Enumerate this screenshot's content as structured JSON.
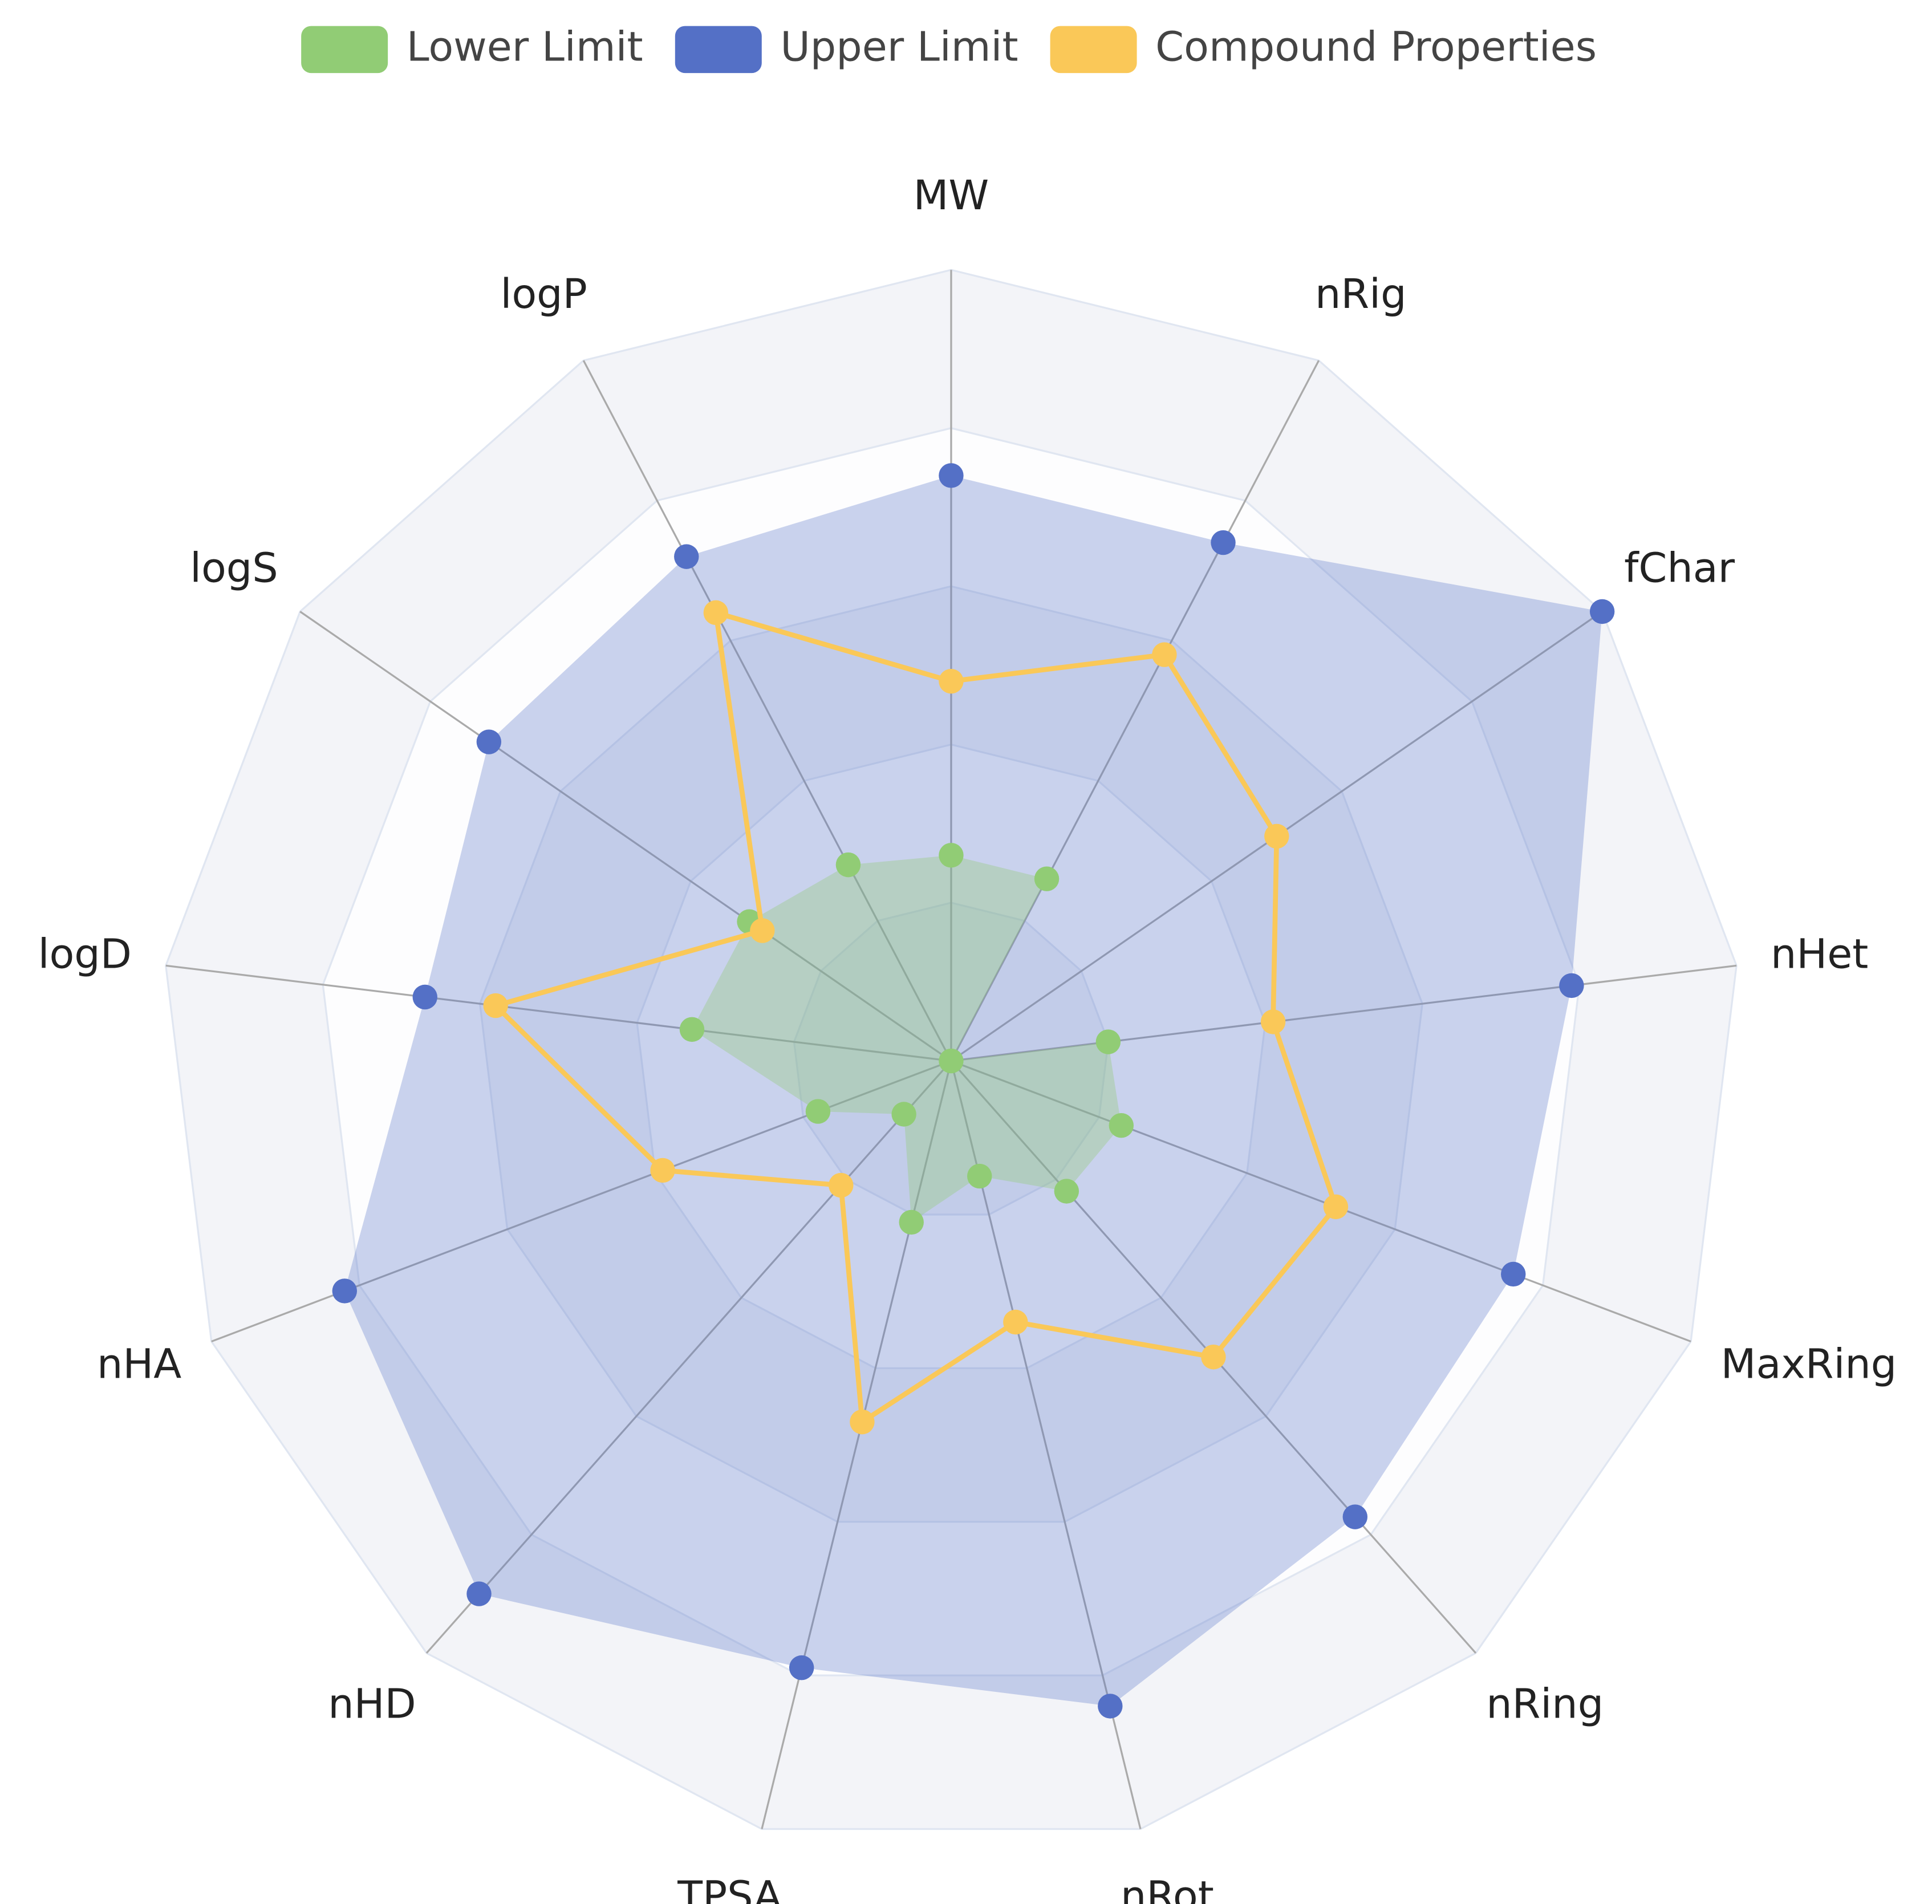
{
  "chart_data": {
    "type": "radar",
    "categories": [
      "MW",
      "nRig",
      "fChar",
      "nHet",
      "MaxRing",
      "nRing",
      "nRot",
      "TPSA",
      "nHD",
      "nHA",
      "logD",
      "logS",
      "logP"
    ],
    "ylim": [
      0,
      1
    ],
    "yticks": [
      0.2,
      0.4,
      0.6,
      0.8,
      1
    ],
    "grid": true,
    "legend": "top",
    "series": [
      {
        "name": "Lower Limit",
        "color": "#91cc75",
        "values": [
          0.26,
          0.26,
          0,
          0.2,
          0.23,
          0.22,
          0.15,
          0.21,
          0.09,
          0.18,
          0.33,
          0.31,
          0.28
        ]
      },
      {
        "name": "Upper Limit",
        "color": "#5470c6",
        "values": [
          0.74,
          0.74,
          1.0,
          0.79,
          0.76,
          0.77,
          0.84,
          0.79,
          0.9,
          0.82,
          0.67,
          0.71,
          0.72
        ]
      },
      {
        "name": "Compound Properties",
        "color": "#fac858",
        "values": [
          0.48,
          0.58,
          0.5,
          0.41,
          0.52,
          0.5,
          0.34,
          0.47,
          0.21,
          0.39,
          0.58,
          0.29,
          0.64
        ]
      }
    ]
  }
}
